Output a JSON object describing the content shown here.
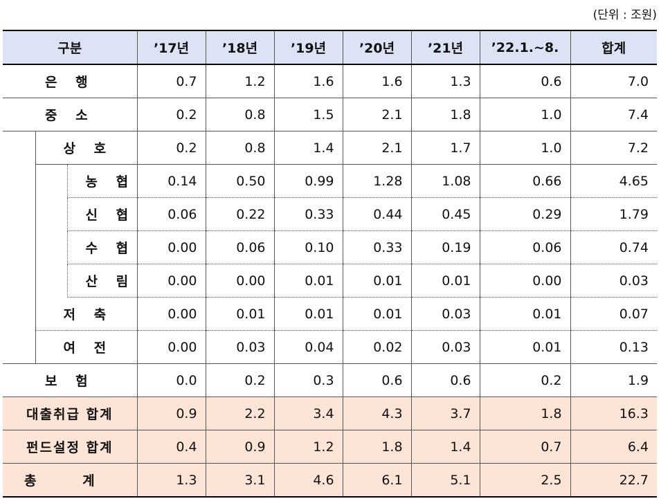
{
  "unit_note": "(단위 : 조원)",
  "headers": [
    "구분",
    "’17년",
    "’18년",
    "’19년",
    "’20년",
    "’21년",
    "’22.1.~8.",
    "합계"
  ],
  "rows": [
    {
      "label": "은 행",
      "values": [
        "0.7",
        "1.2",
        "1.6",
        "1.6",
        "1.3",
        "0.6",
        "7.0"
      ]
    },
    {
      "label": "중 소",
      "values": [
        "0.2",
        "0.8",
        "1.5",
        "2.1",
        "1.8",
        "1.0",
        "7.4"
      ]
    },
    {
      "label": "상 호",
      "values": [
        "0.2",
        "0.8",
        "1.4",
        "2.1",
        "1.7",
        "1.0",
        "7.2"
      ]
    },
    {
      "label": "농 협",
      "values": [
        "0.14",
        "0.50",
        "0.99",
        "1.28",
        "1.08",
        "0.66",
        "4.65"
      ]
    },
    {
      "label": "신 협",
      "values": [
        "0.06",
        "0.22",
        "0.33",
        "0.44",
        "0.45",
        "0.29",
        "1.79"
      ]
    },
    {
      "label": "수 협",
      "values": [
        "0.00",
        "0.06",
        "0.10",
        "0.33",
        "0.19",
        "0.06",
        "0.74"
      ]
    },
    {
      "label": "산 림",
      "values": [
        "0.00",
        "0.00",
        "0.01",
        "0.01",
        "0.01",
        "0.00",
        "0.03"
      ]
    },
    {
      "label": "저 축",
      "values": [
        "0.00",
        "0.01",
        "0.01",
        "0.01",
        "0.03",
        "0.01",
        "0.07"
      ]
    },
    {
      "label": "여 전",
      "values": [
        "0.00",
        "0.03",
        "0.04",
        "0.02",
        "0.03",
        "0.01",
        "0.13"
      ]
    },
    {
      "label": "보 험",
      "values": [
        "0.0",
        "0.2",
        "0.3",
        "0.6",
        "0.6",
        "0.2",
        "1.9"
      ]
    },
    {
      "label": "대출취급 합계",
      "values": [
        "0.9",
        "2.2",
        "3.4",
        "4.3",
        "3.7",
        "1.8",
        "16.3"
      ]
    },
    {
      "label": "펀드설정 합계",
      "values": [
        "0.4",
        "0.9",
        "1.2",
        "1.8",
        "1.4",
        "0.7",
        "6.4"
      ]
    },
    {
      "label": "총 계",
      "values": [
        "1.3",
        "3.1",
        "4.6",
        "6.1",
        "5.1",
        "2.5",
        "22.7"
      ]
    }
  ]
}
